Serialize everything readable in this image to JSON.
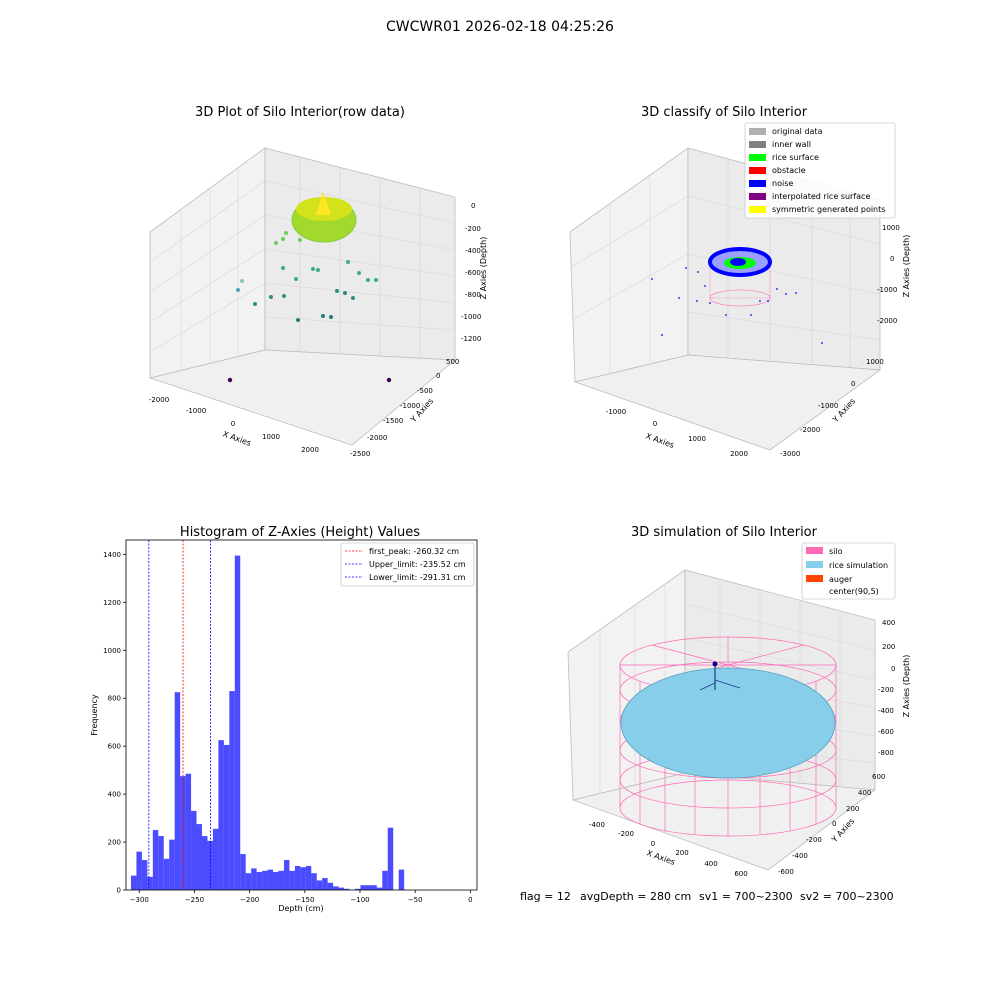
{
  "suptitle": "CWCWR01 2026-02-18 04:25:26",
  "footer": {
    "flag": "flag = 12",
    "avg_depth": "avgDepth = 280 cm",
    "sv1": "sv1 = 700~2300",
    "sv2": "sv2 = 700~2300"
  },
  "chart_data": [
    {
      "type": "scatter",
      "title": "3D Plot of Silo Interior(row data)",
      "xlabel": "X Axies",
      "ylabel": "Y Axies",
      "zlabel": "Z Axies (Depth)",
      "x_ticks": [
        "-2000",
        "-1000",
        "0",
        "1000",
        "2000"
      ],
      "y_ticks": [
        "500",
        "0",
        "-500",
        "-1000",
        "-1500",
        "-2000",
        "-2500"
      ],
      "z_ticks": [
        "0",
        "-200",
        "-400",
        "-600",
        "-800",
        "-1000",
        "-1200"
      ],
      "colors": {
        "cmap_low": "#440154",
        "cmap_mid": "#21918c",
        "cmap_high": "#fde725"
      }
    },
    {
      "type": "scatter",
      "title": "3D classify of Silo Interior",
      "xlabel": "X Axies",
      "ylabel": "Y Axies",
      "zlabel": "Z Axies (Depth)",
      "x_ticks": [
        "-1000",
        "0",
        "1000",
        "2000"
      ],
      "y_ticks": [
        "1000",
        "0",
        "-1000",
        "-2000",
        "-3000"
      ],
      "z_ticks": [
        "1000",
        "0",
        "-1000",
        "-2000"
      ],
      "legend_placement": "top-right",
      "legend": [
        {
          "label": "original data",
          "color": "#b0b0b0"
        },
        {
          "label": "inner wall",
          "color": "#808080"
        },
        {
          "label": "rice surface",
          "color": "#00ff00"
        },
        {
          "label": "obstacle",
          "color": "#ff0000"
        },
        {
          "label": "noise",
          "color": "#0000ff"
        },
        {
          "label": "interpolated rice surface",
          "color": "#800080"
        },
        {
          "label": "symmetric generated points",
          "color": "#ffff00"
        }
      ]
    },
    {
      "type": "bar",
      "title": "Histogram of Z-Axies (Height) Values",
      "xlabel": "Depth (cm)",
      "ylabel": "Frequency",
      "xlim": [
        -312,
        6
      ],
      "ylim": [
        0,
        1460
      ],
      "x_ticks": [
        -300,
        -250,
        -200,
        -150,
        -100,
        -50,
        0
      ],
      "y_ticks": [
        0,
        200,
        400,
        600,
        800,
        1000,
        1200,
        1400
      ],
      "bin_start": -307.5,
      "bin_width": 4.95,
      "values": [
        60,
        160,
        125,
        55,
        250,
        225,
        130,
        210,
        825,
        475,
        485,
        330,
        275,
        225,
        205,
        255,
        625,
        605,
        830,
        1395,
        150,
        70,
        90,
        75,
        80,
        85,
        75,
        80,
        125,
        80,
        100,
        95,
        100,
        70,
        40,
        50,
        30,
        15,
        10,
        5,
        0,
        5,
        20,
        20,
        20,
        10,
        80,
        260,
        0,
        85
      ],
      "bar_color": "#0000ff",
      "vlines": [
        {
          "label": "first_peak: -260.32 cm",
          "x": -260.32,
          "color": "#ff0000"
        },
        {
          "label": "Upper_limit: -235.52 cm",
          "x": -235.52,
          "color": "#0000ff"
        },
        {
          "label": "Lower_limit: -291.31 cm",
          "x": -291.31,
          "color": "#0000ff"
        }
      ],
      "legend_placement": "top-right"
    },
    {
      "type": "scatter",
      "title": "3D simulation of Silo Interior",
      "xlabel": "X Axies",
      "ylabel": "Y Axies",
      "zlabel": "Z Axies (Depth)",
      "x_ticks": [
        "-400",
        "-200",
        "0",
        "200",
        "400",
        "600"
      ],
      "y_ticks": [
        "600",
        "400",
        "200",
        "0",
        "-200",
        "-400",
        "-600"
      ],
      "z_ticks": [
        "400",
        "200",
        "0",
        "-200",
        "-400",
        "-600",
        "-800"
      ],
      "legend_placement": "top-right",
      "legend": [
        {
          "label": "silo",
          "color": "#ff69b4"
        },
        {
          "label": "rice simulation",
          "color": "#87ceeb"
        },
        {
          "label": "auger",
          "color": "#ff4500"
        },
        {
          "label": "center(90,5)",
          "color": ""
        }
      ]
    }
  ]
}
